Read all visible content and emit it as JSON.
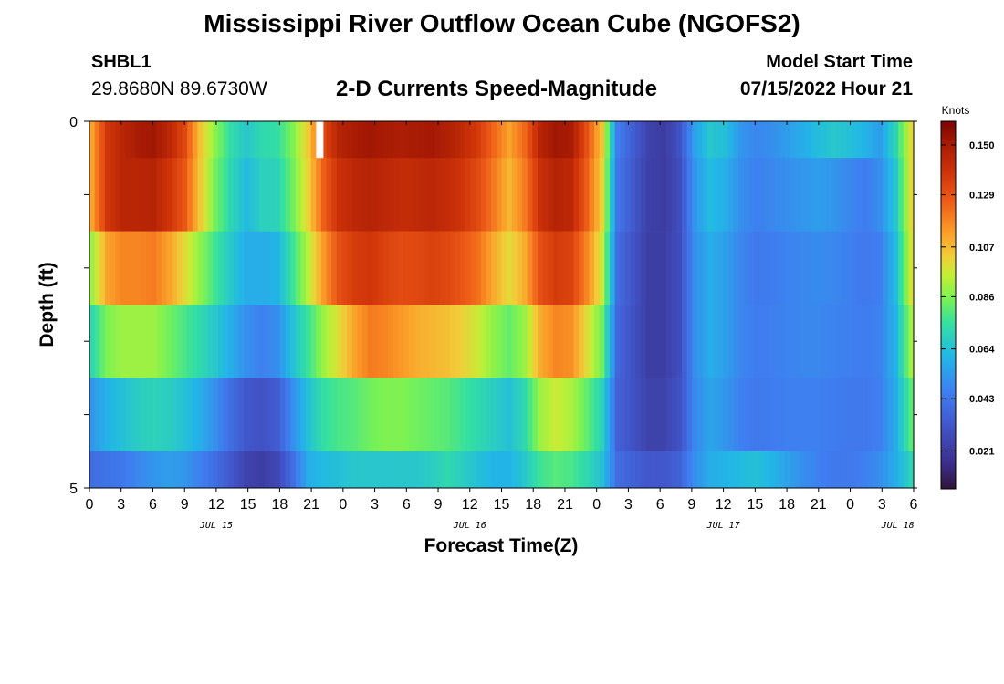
{
  "header": {
    "title_top": "Mississippi River Outflow Ocean Cube (NGOFS2)",
    "title_bottom": "Mississippi River Outflow Ocean Cube (NGOFS2)",
    "station_id": "SHBL1",
    "station_coords": "29.8680N  89.6730W",
    "subtitle": "2-D Currents Speed-Magnitude",
    "model_start_label": "Model Start Time",
    "model_start_value": "07/15/2022 Hour 21"
  },
  "chart_data": {
    "type": "heatmap",
    "title": "2-D Currents Speed-Magnitude",
    "xlabel": "Forecast Time(Z)",
    "ylabel": "Depth (ft)",
    "ylim": [
      0,
      5
    ],
    "y_ticks": [
      "0",
      "5"
    ],
    "x_tick_labels": [
      "0",
      "3",
      "6",
      "9",
      "12",
      "15",
      "18",
      "21",
      "0",
      "3",
      "6",
      "9",
      "12",
      "15",
      "18",
      "21",
      "0",
      "3",
      "6",
      "9",
      "12",
      "15",
      "18",
      "21",
      "0",
      "3",
      "6"
    ],
    "date_labels": [
      {
        "label": "JUL 15",
        "at_tick": 4
      },
      {
        "label": "JUL 16",
        "at_tick": 12
      },
      {
        "label": "JUL 17",
        "at_tick": 20
      },
      {
        "label": "JUL 18",
        "at_tick": 25.5
      }
    ],
    "colorbar": {
      "unit": "Knots",
      "min": 0.005,
      "max": 0.16,
      "ticks": [
        "0.150",
        "0.129",
        "0.107",
        "0.086",
        "0.064",
        "0.043",
        "0.021"
      ],
      "tick_values": [
        0.15,
        0.129,
        0.107,
        0.086,
        0.064,
        0.043,
        0.021
      ]
    },
    "time_hours": [
      0,
      78
    ],
    "layer_depth_bounds": [
      0,
      0.5,
      1.5,
      2.5,
      3.5,
      4.5,
      5
    ],
    "series": [
      {
        "depth_layer": 1,
        "values": [
          0.112,
          0.138,
          0.145,
          0.15,
          0.152,
          0.144,
          0.132,
          0.105,
          0.087,
          0.073,
          0.066,
          0.072,
          0.074,
          0.086,
          0.104,
          0.132,
          0.146,
          0.15,
          0.152,
          0.15,
          0.149,
          0.15,
          0.151,
          0.148,
          0.143,
          0.136,
          0.124,
          0.112,
          0.124,
          0.146,
          0.152,
          0.15,
          0.13,
          0.105,
          0.045,
          0.035,
          0.024,
          0.021,
          0.03,
          0.055,
          0.066,
          0.063,
          0.052,
          0.048,
          0.05,
          0.054,
          0.058,
          0.063,
          0.066,
          0.064,
          0.06,
          0.054,
          0.071,
          0.1
        ]
      },
      {
        "depth_layer": 2,
        "values": [
          0.112,
          0.138,
          0.145,
          0.145,
          0.146,
          0.138,
          0.128,
          0.104,
          0.084,
          0.071,
          0.062,
          0.069,
          0.07,
          0.084,
          0.102,
          0.126,
          0.14,
          0.144,
          0.146,
          0.144,
          0.142,
          0.143,
          0.144,
          0.142,
          0.138,
          0.131,
          0.12,
          0.108,
          0.12,
          0.14,
          0.146,
          0.144,
          0.126,
          0.102,
          0.043,
          0.033,
          0.023,
          0.021,
          0.028,
          0.052,
          0.062,
          0.058,
          0.05,
          0.046,
          0.048,
          0.05,
          0.052,
          0.054,
          0.052,
          0.048,
          0.045,
          0.05,
          0.066,
          0.1
        ]
      },
      {
        "depth_layer": 3,
        "values": [
          0.09,
          0.112,
          0.118,
          0.118,
          0.12,
          0.112,
          0.1,
          0.088,
          0.076,
          0.066,
          0.058,
          0.058,
          0.06,
          0.076,
          0.094,
          0.114,
          0.13,
          0.136,
          0.138,
          0.134,
          0.131,
          0.132,
          0.134,
          0.132,
          0.128,
          0.122,
          0.11,
          0.1,
          0.11,
          0.13,
          0.136,
          0.134,
          0.118,
          0.096,
          0.04,
          0.031,
          0.022,
          0.022,
          0.028,
          0.05,
          0.058,
          0.054,
          0.048,
          0.044,
          0.045,
          0.047,
          0.048,
          0.049,
          0.048,
          0.046,
          0.044,
          0.046,
          0.062,
          0.098
        ]
      },
      {
        "depth_layer": 4,
        "values": [
          0.072,
          0.086,
          0.09,
          0.09,
          0.09,
          0.084,
          0.078,
          0.072,
          0.066,
          0.058,
          0.05,
          0.046,
          0.05,
          0.064,
          0.076,
          0.09,
          0.1,
          0.112,
          0.12,
          0.118,
          0.114,
          0.11,
          0.108,
          0.106,
          0.102,
          0.096,
          0.088,
          0.082,
          0.09,
          0.11,
          0.118,
          0.116,
          0.1,
          0.084,
          0.038,
          0.03,
          0.022,
          0.022,
          0.028,
          0.05,
          0.058,
          0.054,
          0.048,
          0.045,
          0.046,
          0.047,
          0.048,
          0.048,
          0.047,
          0.046,
          0.045,
          0.047,
          0.06,
          0.09
        ]
      },
      {
        "depth_layer": 5,
        "values": [
          0.052,
          0.06,
          0.064,
          0.068,
          0.07,
          0.068,
          0.064,
          0.058,
          0.05,
          0.04,
          0.032,
          0.03,
          0.034,
          0.05,
          0.064,
          0.074,
          0.078,
          0.08,
          0.084,
          0.086,
          0.086,
          0.084,
          0.082,
          0.08,
          0.076,
          0.072,
          0.068,
          0.064,
          0.072,
          0.09,
          0.096,
          0.092,
          0.082,
          0.07,
          0.036,
          0.03,
          0.024,
          0.024,
          0.03,
          0.048,
          0.056,
          0.052,
          0.046,
          0.044,
          0.045,
          0.046,
          0.046,
          0.046,
          0.045,
          0.044,
          0.044,
          0.046,
          0.058,
          0.08
        ]
      },
      {
        "depth_layer": 6,
        "values": [
          0.04,
          0.042,
          0.044,
          0.048,
          0.052,
          0.054,
          0.052,
          0.046,
          0.04,
          0.032,
          0.024,
          0.022,
          0.026,
          0.04,
          0.058,
          0.062,
          0.064,
          0.066,
          0.066,
          0.066,
          0.066,
          0.066,
          0.068,
          0.072,
          0.068,
          0.064,
          0.06,
          0.06,
          0.066,
          0.076,
          0.08,
          0.078,
          0.072,
          0.064,
          0.04,
          0.036,
          0.032,
          0.032,
          0.036,
          0.05,
          0.058,
          0.06,
          0.062,
          0.064,
          0.06,
          0.055,
          0.05,
          0.046,
          0.044,
          0.044,
          0.046,
          0.05,
          0.058,
          0.07
        ]
      }
    ],
    "missing_value_marks": [
      {
        "time_hour": 21.8,
        "depth_layer": 1
      }
    ]
  }
}
